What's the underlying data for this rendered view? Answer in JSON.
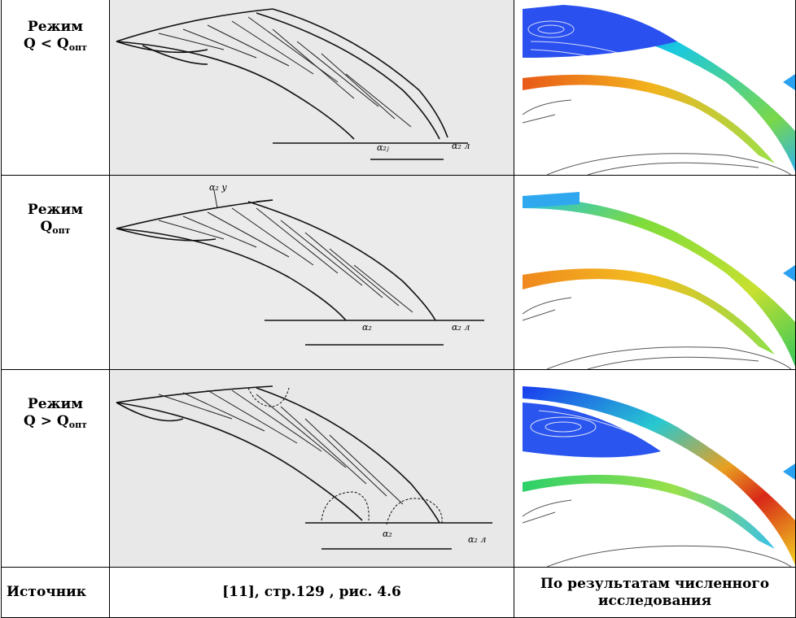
{
  "rows": [
    {
      "mode_label": "Режим",
      "q_prefix": "Q < Q",
      "q_subscript": "опт"
    },
    {
      "mode_label": "Режим",
      "q_prefix": "Q",
      "q_subscript": "опт"
    },
    {
      "mode_label": "Режим",
      "q_prefix": "Q > Q",
      "q_subscript": "опт"
    }
  ],
  "footer": {
    "source_label": "Источник",
    "reference": "[11], стр.129 , рис. 4.6",
    "numerical": "По результатам численного исследования"
  },
  "sketch_labels": {
    "row1": [
      "α₂ⱼ",
      "α₂ л"
    ],
    "row2": [
      "α₂ у",
      "α₂",
      "α₂ л"
    ],
    "row3": [
      "α₂",
      "α₂ л"
    ]
  }
}
